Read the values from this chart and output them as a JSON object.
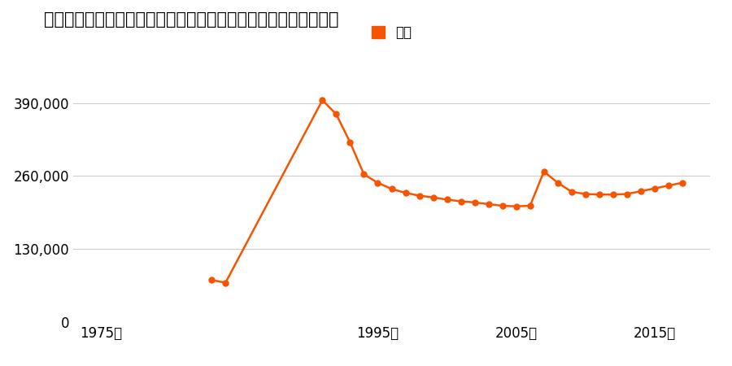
{
  "title": "愛知県名古屋市千種区鍋屋上野町字柳原２３３番４０の地価推移",
  "legend_label": "価格",
  "line_color": "#f55500",
  "marker_color": "#f55500",
  "background_color": "#ffffff",
  "grid_color": "#cccccc",
  "years": [
    1983,
    1984,
    1991,
    1992,
    1993,
    1994,
    1995,
    1996,
    1997,
    1998,
    1999,
    2000,
    2001,
    2002,
    2003,
    2004,
    2005,
    2006,
    2007,
    2008,
    2009,
    2010,
    2011,
    2012,
    2013,
    2014,
    2015,
    2016,
    2017
  ],
  "values": [
    75000,
    70000,
    395000,
    370000,
    320000,
    263000,
    248000,
    237000,
    230000,
    225000,
    222000,
    218000,
    215000,
    213000,
    210000,
    207000,
    206000,
    207000,
    268000,
    248000,
    232000,
    228000,
    227000,
    227000,
    228000,
    233000,
    238000,
    243000,
    248000
  ],
  "xlim": [
    1973,
    2019
  ],
  "ylim": [
    0,
    430000
  ],
  "yticks": [
    0,
    130000,
    260000,
    390000
  ],
  "xticks": [
    1975,
    1995,
    2005,
    2015
  ],
  "xtick_labels": [
    "1975年",
    "1995年",
    "2005年",
    "2015年"
  ],
  "ytick_labels": [
    "0",
    "130,000",
    "260,000",
    "390,000"
  ],
  "title_fontsize": 15,
  "axis_fontsize": 12,
  "legend_fontsize": 12
}
